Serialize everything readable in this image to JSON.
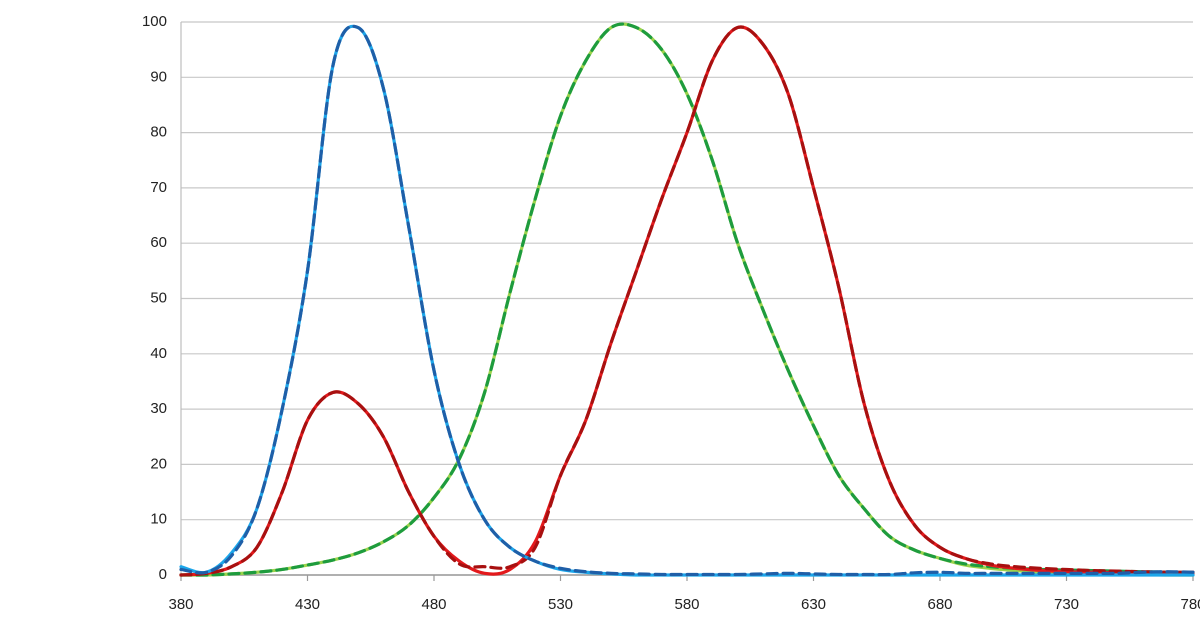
{
  "chart_data": {
    "type": "line",
    "x": [
      380,
      390,
      400,
      410,
      420,
      430,
      440,
      450,
      460,
      470,
      480,
      490,
      500,
      510,
      520,
      530,
      540,
      550,
      560,
      570,
      580,
      590,
      600,
      610,
      620,
      630,
      640,
      650,
      660,
      670,
      680,
      690,
      700,
      710,
      720,
      730,
      740,
      750,
      760,
      770,
      780
    ],
    "xlim": [
      380,
      780
    ],
    "xticks": [
      380,
      430,
      480,
      530,
      580,
      630,
      680,
      730,
      780
    ],
    "ylim": [
      0,
      100
    ],
    "yticks": [
      0,
      10,
      20,
      30,
      40,
      50,
      60,
      70,
      80,
      90,
      100
    ],
    "grid": true,
    "series": [
      {
        "color": "#9bd34c",
        "dashed": false,
        "values": [
          0,
          0,
          0.2,
          0.5,
          1,
          1.8,
          2.7,
          4,
          6,
          9,
          14,
          21,
          33,
          51,
          68,
          83,
          93,
          99,
          99,
          95,
          87,
          75,
          60,
          48,
          37,
          27,
          18,
          12,
          7,
          4.5,
          3,
          1.8,
          1.2,
          0.8,
          0.5,
          0.3,
          0.2,
          0.1,
          0.1,
          0,
          0
        ]
      },
      {
        "color": "#1e9c3e",
        "dashed": true,
        "values": [
          0,
          0,
          0.2,
          0.5,
          1,
          1.8,
          2.7,
          4,
          6,
          9,
          14,
          21,
          33,
          51,
          68,
          83,
          93,
          99,
          99,
          95,
          87,
          75,
          60,
          48,
          37,
          27,
          18,
          12,
          7,
          4.5,
          3,
          2,
          1.5,
          1.2,
          1,
          0.9,
          0.8,
          0.7,
          0.6,
          0.5,
          0.4
        ]
      },
      {
        "color": "#e3191c",
        "dashed": false,
        "values": [
          0,
          0.3,
          1.5,
          5,
          15,
          28,
          33,
          31,
          25,
          15,
          7,
          2.5,
          0.3,
          1,
          6,
          18,
          28,
          42,
          55,
          68,
          80,
          93,
          99,
          96,
          87,
          70,
          52,
          31,
          17,
          9,
          5,
          3,
          1.8,
          1.2,
          0.8,
          0.6,
          0.5,
          0.4,
          0.3,
          0.2,
          0.2
        ]
      },
      {
        "color": "#a81010",
        "dashed": true,
        "values": [
          0,
          0.3,
          1.5,
          5,
          15,
          28,
          33,
          31,
          25,
          15,
          7,
          2,
          1.5,
          1.5,
          5,
          18,
          28,
          42,
          55,
          68,
          80,
          93,
          99,
          96,
          87,
          70,
          52,
          31,
          17,
          9,
          5,
          3,
          2,
          1.5,
          1.2,
          1,
          0.8,
          0.7,
          0.6,
          0.5,
          0.5
        ]
      },
      {
        "color": "#1ca6ea",
        "dashed": false,
        "values": [
          1.5,
          0.5,
          4,
          12,
          30,
          55,
          92,
          99,
          88,
          63,
          37,
          20,
          10,
          5,
          2.5,
          1,
          0.5,
          0.2,
          0,
          0,
          0,
          0,
          0,
          0,
          0,
          0,
          0,
          0,
          0,
          0,
          0,
          0,
          0,
          0,
          0,
          0,
          0,
          0,
          0,
          0,
          0
        ]
      },
      {
        "color": "#1f5fa8",
        "dashed": true,
        "values": [
          1,
          0.5,
          3.5,
          12,
          30,
          55,
          92,
          99,
          88,
          63,
          37,
          20,
          10,
          5,
          2.5,
          1.2,
          0.6,
          0.3,
          0.2,
          0.1,
          0.1,
          0.1,
          0.1,
          0.2,
          0.3,
          0.2,
          0.1,
          0.1,
          0.1,
          0.4,
          0.5,
          0.3,
          0.3,
          0.3,
          0.3,
          0.3,
          0.3,
          0.3,
          0.5,
          0.6,
          0.5
        ]
      }
    ]
  }
}
